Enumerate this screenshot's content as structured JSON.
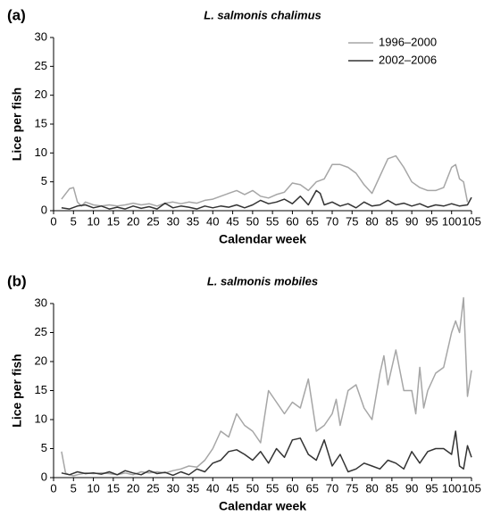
{
  "chart_data": [
    {
      "type": "line",
      "panel_label": "(a)",
      "title": "L. salmonis chalimus",
      "xlabel": "Calendar week",
      "ylabel": "Lice per fish",
      "xlim": [
        0,
        105
      ],
      "xticks": [
        0,
        5,
        10,
        15,
        20,
        25,
        30,
        35,
        40,
        45,
        50,
        55,
        60,
        65,
        70,
        75,
        80,
        85,
        90,
        95,
        100,
        105
      ],
      "ylim": [
        0,
        30
      ],
      "yticks": [
        0,
        5,
        10,
        15,
        20,
        25,
        30
      ],
      "legend": "upper right",
      "series": [
        {
          "name": "1996–2000",
          "color": "#a6a6a6",
          "x": [
            2,
            4,
            5,
            6,
            7,
            8,
            10,
            12,
            14,
            16,
            18,
            20,
            22,
            24,
            26,
            28,
            30,
            32,
            34,
            36,
            38,
            40,
            42,
            44,
            46,
            48,
            50,
            52,
            54,
            56,
            58,
            60,
            62,
            64,
            66,
            68,
            70,
            72,
            74,
            76,
            78,
            80,
            82,
            84,
            86,
            88,
            90,
            92,
            94,
            96,
            98,
            100,
            101,
            102,
            103,
            104
          ],
          "values": [
            2,
            3.8,
            4,
            1.5,
            0.8,
            1.5,
            1,
            0.8,
            1,
            0.8,
            1,
            1.3,
            1,
            1.2,
            0.8,
            1.3,
            1.5,
            1.2,
            1.5,
            1.3,
            1.8,
            2,
            2.5,
            3,
            3.5,
            2.8,
            3.5,
            2.5,
            2.2,
            2.8,
            3.2,
            4.8,
            4.5,
            3.5,
            5,
            5.5,
            8,
            8,
            7.5,
            6.5,
            4.5,
            3,
            6,
            9,
            9.5,
            7.5,
            5,
            4,
            3.5,
            3.5,
            4,
            7.5,
            8,
            5.5,
            5,
            1.5
          ]
        },
        {
          "name": "2002–2006",
          "color": "#333333",
          "x": [
            2,
            4,
            6,
            8,
            10,
            12,
            14,
            16,
            18,
            20,
            22,
            24,
            26,
            28,
            30,
            32,
            34,
            36,
            38,
            40,
            42,
            44,
            46,
            48,
            50,
            52,
            54,
            56,
            58,
            60,
            62,
            64,
            66,
            67,
            68,
            70,
            72,
            74,
            76,
            78,
            80,
            82,
            84,
            86,
            88,
            90,
            92,
            94,
            96,
            98,
            100,
            102,
            104,
            105
          ],
          "values": [
            0.5,
            0.3,
            0.8,
            1,
            0.5,
            0.8,
            0.3,
            0.6,
            0.3,
            0.8,
            0.4,
            0.7,
            0.3,
            1.3,
            0.5,
            0.8,
            0.6,
            0.3,
            0.8,
            0.5,
            0.8,
            0.6,
            1,
            0.5,
            1,
            1.8,
            1.2,
            1.5,
            2,
            1.2,
            2.5,
            1,
            3.5,
            3,
            1,
            1.5,
            0.8,
            1.2,
            0.5,
            1.5,
            0.8,
            1,
            1.8,
            1,
            1.3,
            0.8,
            1.2,
            0.6,
            1,
            0.8,
            1.2,
            0.8,
            1,
            2.3
          ]
        }
      ]
    },
    {
      "type": "line",
      "panel_label": "(b)",
      "title": "L. salmonis mobiles",
      "xlabel": "Calendar week",
      "ylabel": "Lice per fish",
      "xlim": [
        0,
        105
      ],
      "xticks": [
        0,
        5,
        10,
        15,
        20,
        25,
        30,
        35,
        40,
        45,
        50,
        55,
        60,
        65,
        70,
        75,
        80,
        85,
        90,
        95,
        100,
        105
      ],
      "ylim": [
        0,
        30
      ],
      "yticks": [
        0,
        5,
        10,
        15,
        20,
        25,
        30
      ],
      "series": [
        {
          "name": "1996–2000",
          "color": "#a6a6a6",
          "x": [
            2,
            3,
            4,
            5,
            6,
            8,
            10,
            12,
            14,
            16,
            18,
            20,
            22,
            24,
            26,
            28,
            30,
            32,
            34,
            36,
            38,
            40,
            42,
            44,
            46,
            48,
            50,
            52,
            54,
            56,
            58,
            60,
            62,
            64,
            66,
            68,
            70,
            71,
            72,
            74,
            76,
            78,
            80,
            82,
            83,
            84,
            86,
            88,
            90,
            91,
            92,
            93,
            94,
            96,
            98,
            100,
            101,
            102,
            103,
            104,
            105
          ],
          "values": [
            4.5,
            0.8,
            0.5,
            0.3,
            0.5,
            0.8,
            0.7,
            0.8,
            0.7,
            0.5,
            0.8,
            0.5,
            1,
            0.8,
            1,
            0.8,
            1.2,
            1.5,
            2,
            1.8,
            3,
            5,
            8,
            7,
            11,
            9,
            8,
            6,
            15,
            13,
            11,
            13,
            12,
            17,
            8,
            9,
            11,
            13.5,
            9,
            15,
            16,
            12,
            10,
            18,
            21,
            16,
            22,
            15,
            15,
            11,
            19,
            12,
            15,
            18,
            19,
            25,
            27,
            25,
            31,
            14,
            18.5
          ]
        },
        {
          "name": "2002–2006",
          "color": "#333333",
          "x": [
            2,
            4,
            6,
            8,
            10,
            12,
            14,
            16,
            18,
            20,
            22,
            24,
            26,
            28,
            30,
            32,
            34,
            36,
            38,
            40,
            42,
            44,
            46,
            48,
            50,
            52,
            54,
            56,
            58,
            60,
            62,
            64,
            66,
            68,
            70,
            72,
            74,
            76,
            78,
            80,
            82,
            84,
            86,
            88,
            90,
            92,
            94,
            96,
            98,
            100,
            101,
            102,
            103,
            104,
            105
          ],
          "values": [
            0.8,
            0.5,
            1,
            0.7,
            0.8,
            0.6,
            1,
            0.5,
            1.2,
            0.8,
            0.5,
            1.2,
            0.7,
            0.9,
            0.4,
            1,
            0.5,
            1.5,
            1,
            2.5,
            3,
            4.5,
            4.8,
            4,
            3,
            4.5,
            2.5,
            5,
            3.5,
            6.5,
            6.8,
            4,
            3,
            6.5,
            2,
            4,
            1,
            1.5,
            2.5,
            2,
            1.5,
            3,
            2.5,
            1.5,
            4.5,
            2.5,
            4.5,
            5,
            5,
            4,
            8,
            2,
            1.5,
            5.5,
            3.5
          ]
        }
      ]
    }
  ]
}
